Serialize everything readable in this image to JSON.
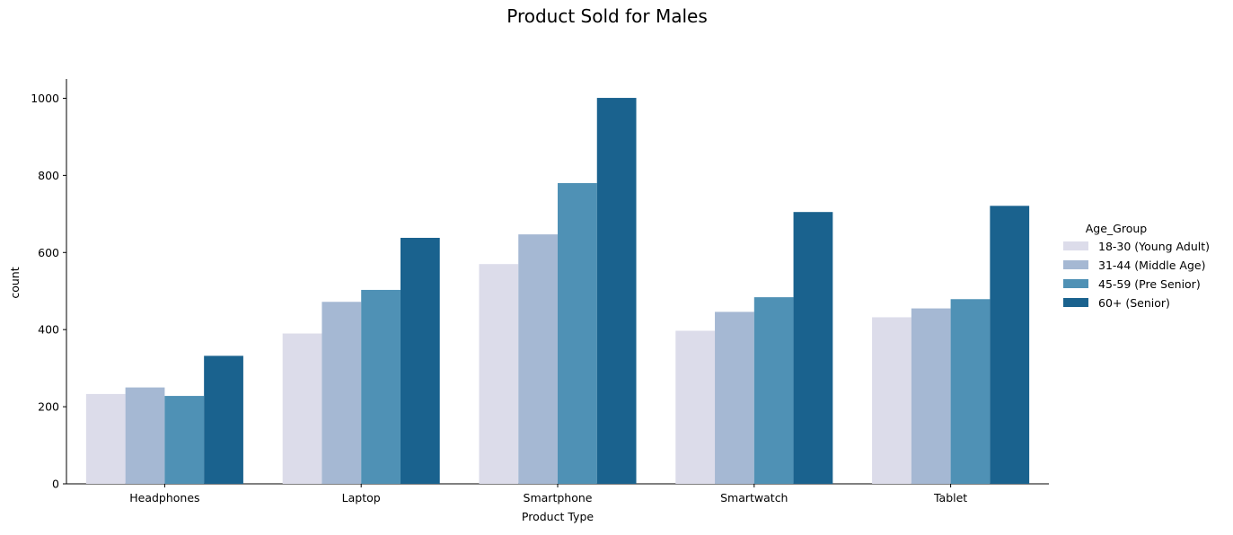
{
  "chart_data": {
    "type": "bar",
    "title": "Product Sold for Males",
    "xlabel": "Product Type",
    "ylabel": "count",
    "categories": [
      "Headphones",
      "Laptop",
      "Smartphone",
      "Smartwatch",
      "Tablet"
    ],
    "ylim": [
      0,
      1050
    ],
    "yticks": [
      0,
      200,
      400,
      600,
      800,
      1000
    ],
    "grid": false,
    "legend": {
      "title": "Age_Group",
      "placement": "right"
    },
    "series": [
      {
        "name": "18-30 (Young Adult)",
        "color": "#dcdcea",
        "values": [
          233,
          390,
          570,
          397,
          432
        ]
      },
      {
        "name": "31-44 (Middle Age)",
        "color": "#a5b8d3",
        "values": [
          250,
          472,
          647,
          446,
          455
        ]
      },
      {
        "name": "45-59 (Pre Senior)",
        "color": "#4f91b5",
        "values": [
          228,
          503,
          780,
          484,
          479
        ]
      },
      {
        "name": "60+ (Senior)",
        "color": "#1a628e",
        "values": [
          332,
          638,
          1001,
          705,
          721
        ]
      }
    ]
  }
}
